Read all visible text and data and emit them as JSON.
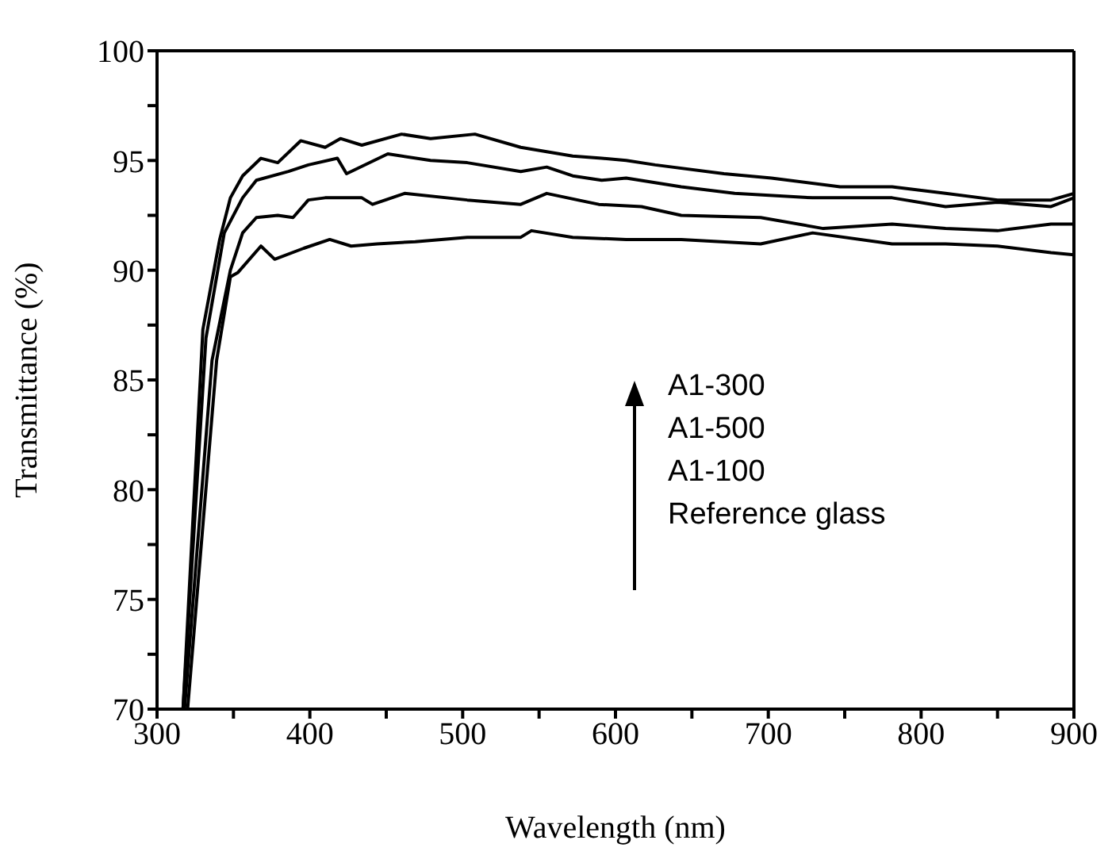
{
  "chart_data": {
    "type": "line",
    "xlabel": "Wavelength (nm)",
    "ylabel": "Transmittance (%)",
    "xlim": [
      300,
      900
    ],
    "ylim": [
      70,
      100
    ],
    "xticks": [
      300,
      {
        "value": 350,
        "label": null
      },
      400,
      {
        "value": 450,
        "label": null
      },
      500,
      {
        "value": 550,
        "label": null
      },
      600,
      {
        "value": 650,
        "label": null
      },
      700,
      {
        "value": 750,
        "label": null
      },
      800,
      {
        "value": 850,
        "label": null
      },
      900
    ],
    "yticks": [
      70,
      {
        "value": 72.5,
        "label": null
      },
      75,
      {
        "value": 77.5,
        "label": null
      },
      80,
      {
        "value": 82.5,
        "label": null
      },
      85,
      {
        "value": 87.5,
        "label": null
      },
      90,
      {
        "value": 92.5,
        "label": null
      },
      95,
      {
        "value": 97.5,
        "label": null
      },
      100
    ],
    "annotations": [
      "A1-300",
      "A1-500",
      "A1-100",
      "Reference glass"
    ],
    "marker": "none",
    "line_style": "solid",
    "series": [
      {
        "color": "#000000",
        "x": [
          317,
          330,
          341,
          348,
          356,
          368,
          379,
          394,
          410,
          420,
          434,
          460,
          479,
          508,
          538,
          555,
          572,
          591,
          607,
          626,
          671,
          702,
          747,
          781,
          816,
          850,
          885,
          900
        ],
        "values": [
          70,
          87.3,
          91.4,
          93.3,
          94.3,
          95.1,
          94.9,
          95.9,
          95.6,
          96.0,
          95.7,
          96.2,
          96.0,
          96.2,
          95.6,
          95.4,
          95.2,
          95.1,
          95.0,
          94.8,
          94.4,
          94.2,
          93.8,
          93.8,
          93.5,
          93.2,
          93.2,
          93.5
        ]
      },
      {
        "color": "#000000",
        "x": [
          317,
          332,
          344,
          356,
          365,
          386,
          399,
          418,
          424,
          451,
          479,
          503,
          538,
          555,
          572,
          591,
          607,
          643,
          678,
          729,
          781,
          816,
          850,
          885,
          900
        ],
        "values": [
          70,
          86.9,
          91.7,
          93.3,
          94.1,
          94.5,
          94.8,
          95.1,
          94.4,
          95.3,
          95.0,
          94.9,
          94.5,
          94.7,
          94.3,
          94.1,
          94.2,
          93.8,
          93.5,
          93.3,
          93.3,
          92.9,
          93.1,
          92.9,
          93.3
        ]
      },
      {
        "color": "#000000",
        "x": [
          318,
          336,
          348,
          356,
          365,
          379,
          389,
          399,
          410,
          434,
          441,
          462,
          503,
          538,
          555,
          589,
          617,
          643,
          695,
          736,
          781,
          816,
          850,
          885,
          900
        ],
        "values": [
          70,
          85.9,
          90.0,
          91.7,
          92.4,
          92.5,
          92.4,
          93.2,
          93.3,
          93.3,
          93.0,
          93.5,
          93.2,
          93.0,
          93.5,
          93.0,
          92.9,
          92.5,
          92.4,
          91.9,
          92.1,
          91.9,
          91.8,
          92.1,
          92.1
        ]
      },
      {
        "color": "#000000",
        "x": [
          320,
          339,
          348,
          353,
          368,
          377,
          396,
          413,
          427,
          444,
          469,
          503,
          538,
          545,
          572,
          607,
          643,
          695,
          729,
          781,
          816,
          850,
          885,
          900
        ],
        "values": [
          70,
          85.9,
          89.7,
          89.9,
          91.1,
          90.5,
          91.0,
          91.4,
          91.1,
          91.2,
          91.3,
          91.5,
          91.5,
          91.8,
          91.5,
          91.4,
          91.4,
          91.2,
          91.7,
          91.2,
          91.2,
          91.1,
          90.8,
          90.7
        ]
      }
    ]
  }
}
